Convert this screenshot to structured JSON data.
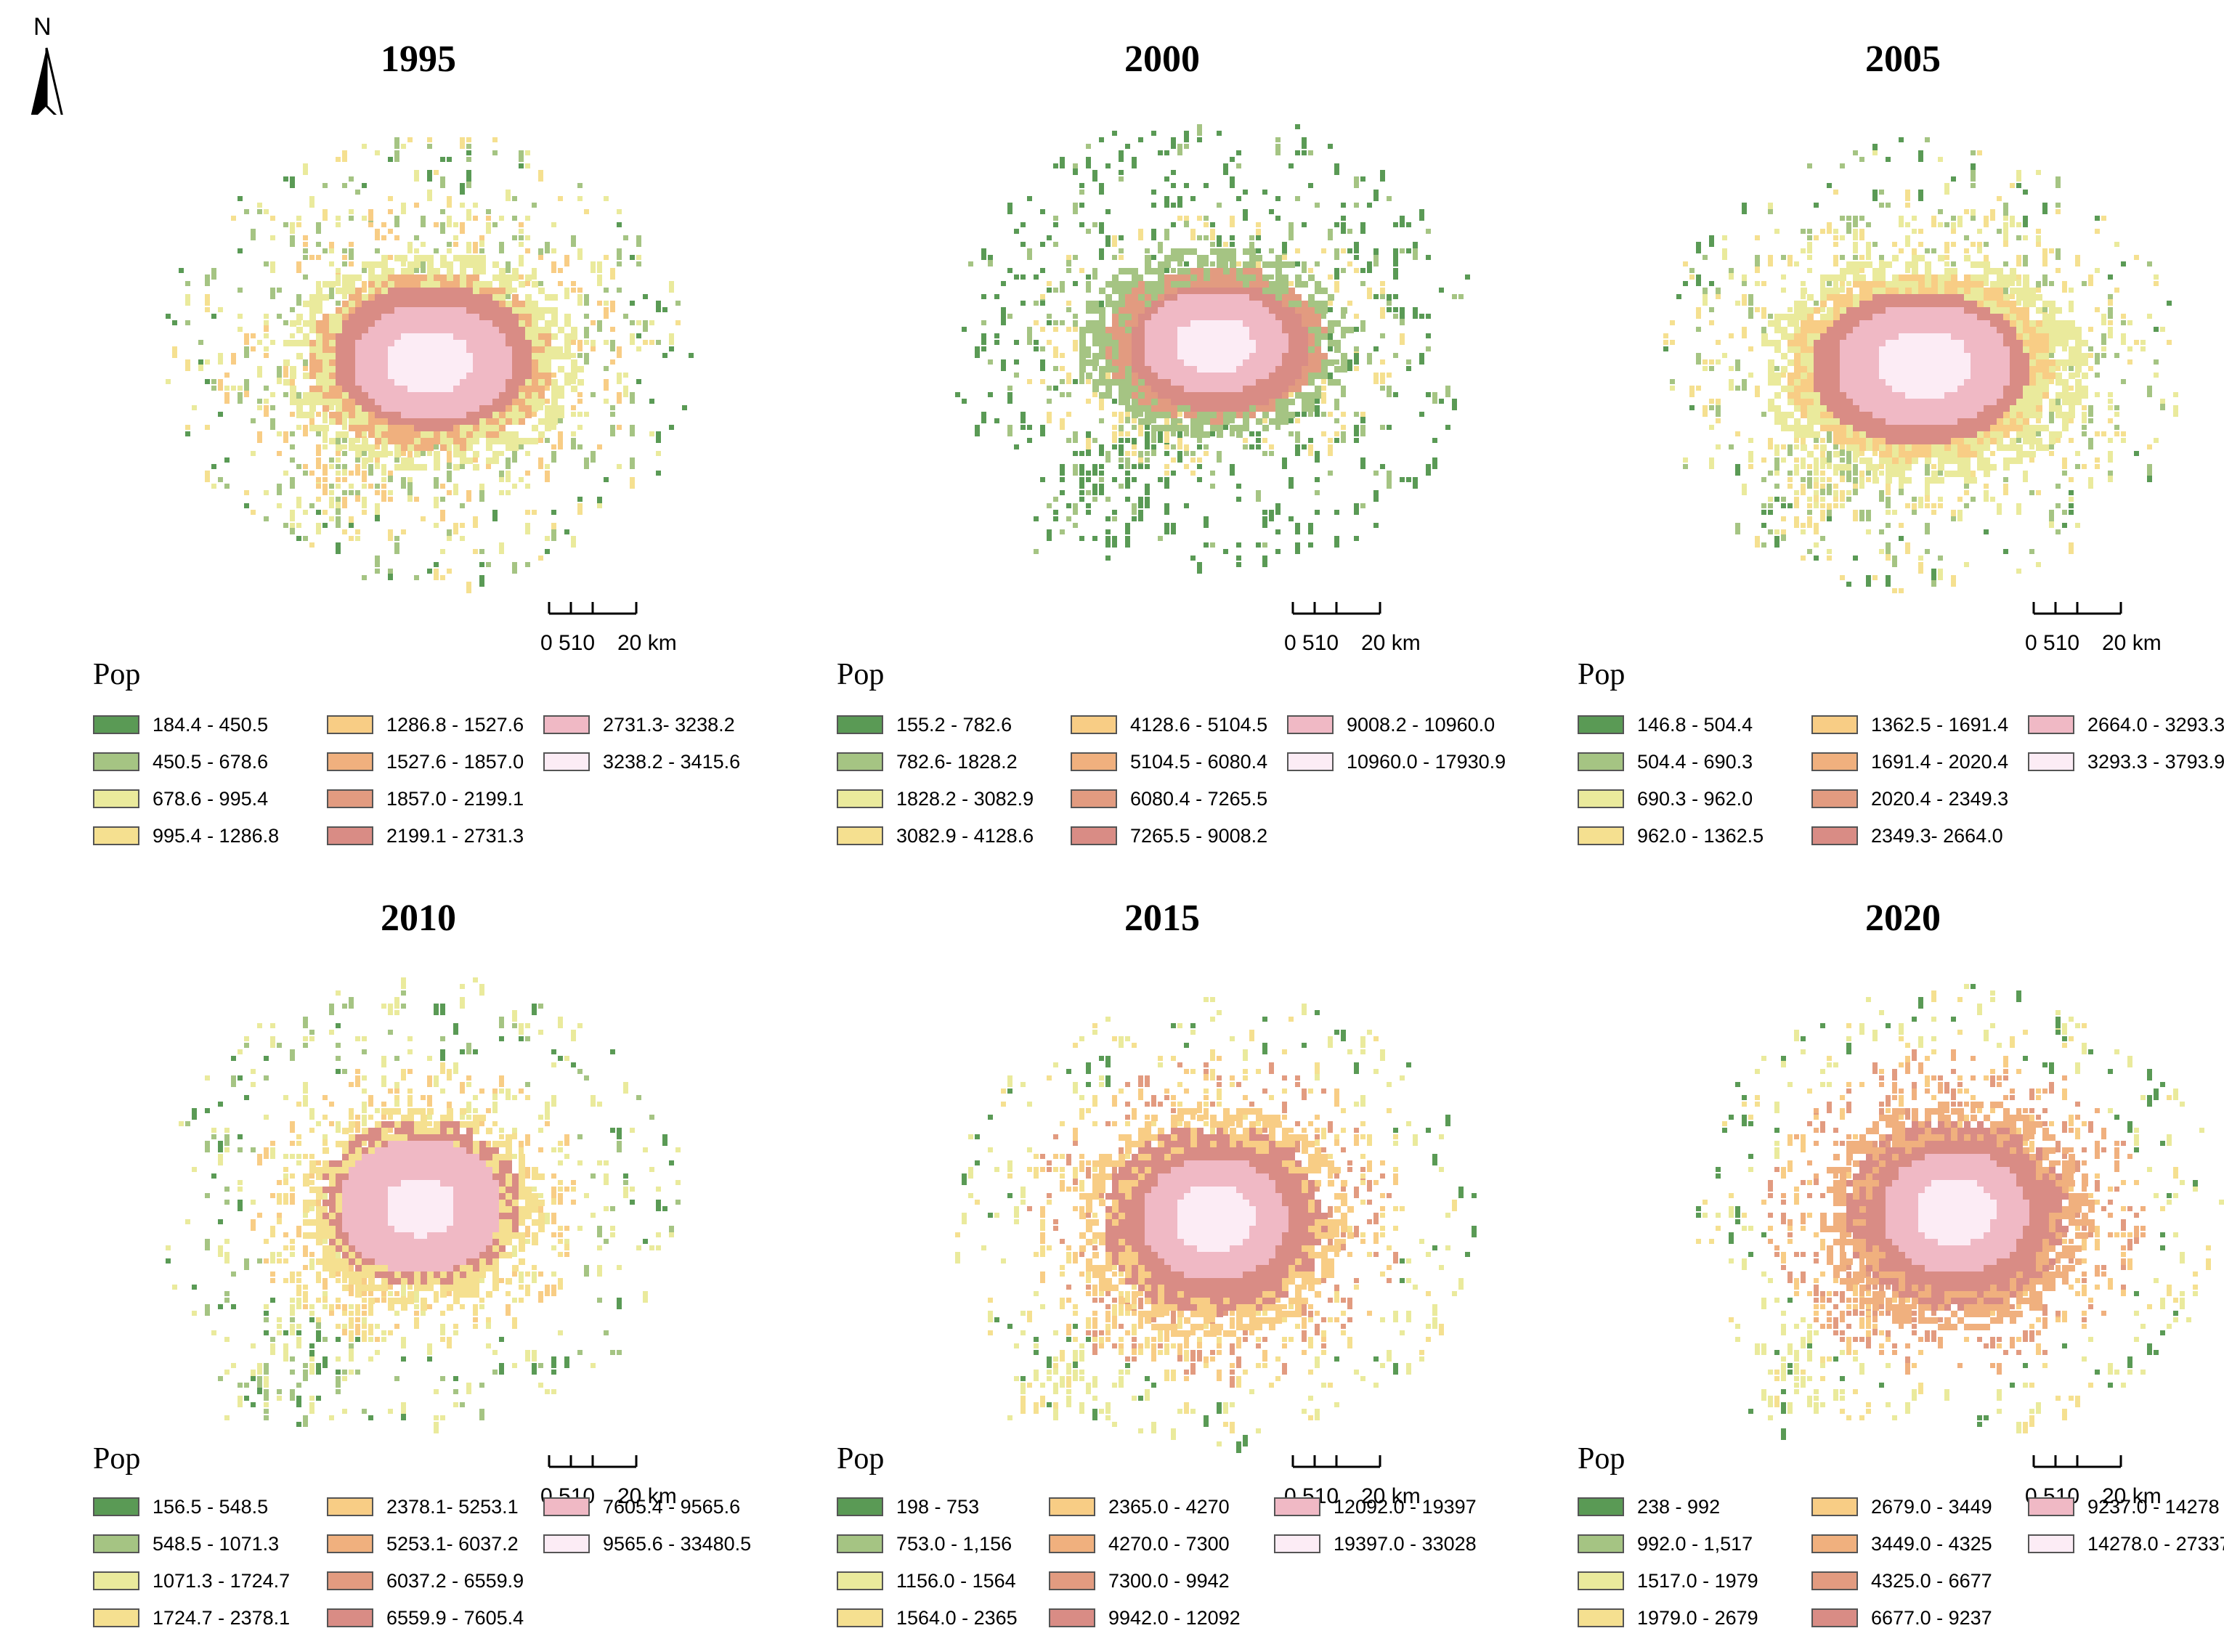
{
  "north_arrow": {
    "label": "N"
  },
  "scale_bar": {
    "ticks": "0 510",
    "end": "20 km"
  },
  "legend_title": "Pop",
  "colors": [
    "#5a9a55",
    "#a5c483",
    "#eaea9c",
    "#f5e090",
    "#f8cd85",
    "#f0b07e",
    "#e29b80",
    "#d98c85",
    "#f0b9c5",
    "#fcecf5"
  ],
  "panels": [
    {
      "year": "1995",
      "classes": [
        "184.4 - 450.5",
        "450.5 - 678.6",
        "678.6 - 995.4",
        "995.4 - 1286.8",
        "1286.8 - 1527.6",
        "1527.6 - 1857.0",
        "1857.0 - 2199.1",
        "2199.1 - 2731.3",
        "2731.3- 3238.2",
        "3238.2 - 3415.6"
      ]
    },
    {
      "year": "2000",
      "classes": [
        "155.2 - 782.6",
        "782.6- 1828.2",
        "1828.2 - 3082.9",
        "3082.9 - 4128.6",
        "4128.6 - 5104.5",
        "5104.5 - 6080.4",
        "6080.4 - 7265.5",
        "7265.5 - 9008.2",
        "9008.2 - 10960.0",
        "10960.0 - 17930.9"
      ]
    },
    {
      "year": "2005",
      "classes": [
        "146.8 - 504.4",
        "504.4 - 690.3",
        "690.3 - 962.0",
        "962.0 - 1362.5",
        "1362.5 - 1691.4",
        "1691.4 - 2020.4",
        "2020.4 - 2349.3",
        "2349.3- 2664.0",
        "2664.0 - 3293.3",
        "3293.3 - 3793.9"
      ]
    },
    {
      "year": "2010",
      "classes": [
        "156.5 - 548.5",
        "548.5 - 1071.3",
        "1071.3 - 1724.7",
        "1724.7 - 2378.1",
        "2378.1- 5253.1",
        "5253.1- 6037.2",
        "6037.2 - 6559.9",
        "6559.9 - 7605.4",
        "7605.4 - 9565.6",
        "9565.6 - 33480.5"
      ]
    },
    {
      "year": "2015",
      "classes": [
        "198 - 753",
        "753.0 - 1,156",
        "1156.0 - 1564",
        "1564.0 - 2365",
        "2365.0 - 4270",
        "4270.0 - 7300",
        "7300.0 - 9942",
        "9942.0 - 12092",
        "12092.0 - 19397",
        "19397.0 - 33028"
      ]
    },
    {
      "year": "2020",
      "classes": [
        "238 - 992",
        "992.0 - 1,517",
        "1517.0 - 1979",
        "1979.0 - 2679",
        "2679.0 - 3449",
        "3449.0 - 4325",
        "4325.0 - 6677",
        "6677.0 - 9237",
        "9237.0 - 14278",
        "14278.0 - 27337"
      ]
    }
  ]
}
